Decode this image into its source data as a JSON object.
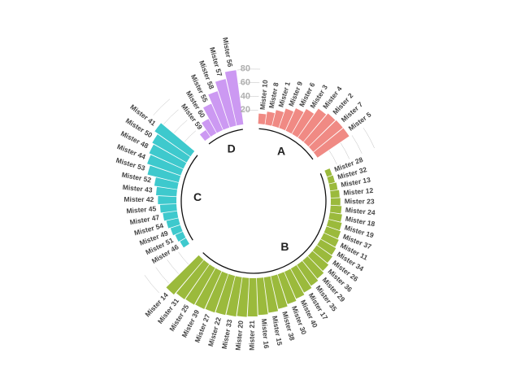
{
  "chart_data": {
    "type": "circular-bar",
    "title": "",
    "radial_ticks": [
      "20",
      "40",
      "60",
      "80"
    ],
    "groups": [
      {
        "name": "A",
        "color": "#f08a84",
        "bars": [
          {
            "label": "Mister 10",
            "value": 15
          },
          {
            "label": "Mister 8",
            "value": 19
          },
          {
            "label": "Mister 1",
            "value": 24
          },
          {
            "label": "Mister 9",
            "value": 30
          },
          {
            "label": "Mister 6",
            "value": 36
          },
          {
            "label": "Mister 3",
            "value": 42
          },
          {
            "label": "Mister 4",
            "value": 52
          },
          {
            "label": "Mister 2",
            "value": 55
          },
          {
            "label": "Mister 7",
            "value": 56
          },
          {
            "label": "Mister 5",
            "value": 56
          }
        ]
      },
      {
        "name": "B",
        "color": "#9bba3c",
        "bars": [
          {
            "label": "Mister 28",
            "value": 8
          },
          {
            "label": "Mister 32",
            "value": 9
          },
          {
            "label": "Mister 13",
            "value": 11
          },
          {
            "label": "Mister 12",
            "value": 13
          },
          {
            "label": "Mister 23",
            "value": 14
          },
          {
            "label": "Mister 24",
            "value": 16
          },
          {
            "label": "Mister 18",
            "value": 18
          },
          {
            "label": "Mister 19",
            "value": 20
          },
          {
            "label": "Mister 37",
            "value": 22
          },
          {
            "label": "Mister 11",
            "value": 24
          },
          {
            "label": "Mister 34",
            "value": 26
          },
          {
            "label": "Mister 26",
            "value": 28
          },
          {
            "label": "Mister 36",
            "value": 31
          },
          {
            "label": "Mister 29",
            "value": 34
          },
          {
            "label": "Mister 35",
            "value": 37
          },
          {
            "label": "Mister 17",
            "value": 40
          },
          {
            "label": "Mister 40",
            "value": 43
          },
          {
            "label": "Mister 30",
            "value": 46
          },
          {
            "label": "Mister 38",
            "value": 49
          },
          {
            "label": "Mister 15",
            "value": 52
          },
          {
            "label": "Mister 16",
            "value": 54
          },
          {
            "label": "Mister 21",
            "value": 56
          },
          {
            "label": "Mister 20",
            "value": 57
          },
          {
            "label": "Mister 33",
            "value": 58
          },
          {
            "label": "Mister 22",
            "value": 59
          },
          {
            "label": "Mister 27",
            "value": 60
          },
          {
            "label": "Mister 39",
            "value": 61
          },
          {
            "label": "Mister 25",
            "value": 62
          },
          {
            "label": "Mister 31",
            "value": 63
          },
          {
            "label": "Mister 14",
            "value": 67
          }
        ]
      },
      {
        "name": "C",
        "color": "#3ec9cd",
        "bars": [
          {
            "label": "Mister 46",
            "value": 10
          },
          {
            "label": "Mister 51",
            "value": 12
          },
          {
            "label": "Mister 49",
            "value": 15
          },
          {
            "label": "Mister 54",
            "value": 18
          },
          {
            "label": "Mister 47",
            "value": 21
          },
          {
            "label": "Mister 45",
            "value": 24
          },
          {
            "label": "Mister 42",
            "value": 27
          },
          {
            "label": "Mister 43",
            "value": 30
          },
          {
            "label": "Mister 52",
            "value": 34
          },
          {
            "label": "Mister 53",
            "value": 47
          },
          {
            "label": "Mister 44",
            "value": 52
          },
          {
            "label": "Mister 48",
            "value": 55
          },
          {
            "label": "Mister 50",
            "value": 58
          },
          {
            "label": "Mister 41",
            "value": 64
          }
        ]
      },
      {
        "name": "D",
        "color": "#cc99f2",
        "bars": [
          {
            "label": "Mister 59",
            "value": 12
          },
          {
            "label": "Mister 60",
            "value": 24
          },
          {
            "label": "Mister 55",
            "value": 42
          },
          {
            "label": "Mister 58",
            "value": 56
          },
          {
            "label": "Mister 57",
            "value": 70
          },
          {
            "label": "Mister 56",
            "value": 80
          }
        ]
      }
    ]
  }
}
